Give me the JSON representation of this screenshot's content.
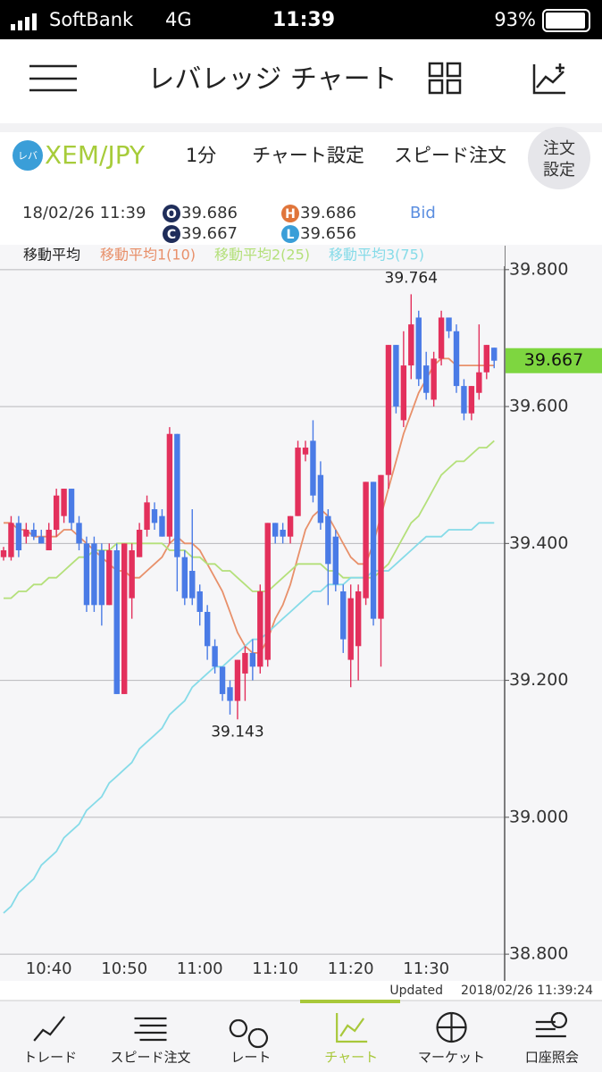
{
  "status_bar": {
    "carrier": "SoftBank",
    "network": "4G",
    "time": "11:39",
    "battery": "93%"
  },
  "header": {
    "title": "レバレッジ チャート"
  },
  "toolbar": {
    "logo": "レバ",
    "pair": "XEM/JPY",
    "interval": "1分",
    "chart_settings": "チャート設定",
    "speed_order": "スピード注文",
    "order_settings_1": "注文",
    "order_settings_2": "設定"
  },
  "quote": {
    "time": "18/02/26 11:39",
    "open": {
      "badge": "O",
      "value": "39.686"
    },
    "high": {
      "badge": "H",
      "value": "39.686"
    },
    "close": {
      "badge": "C",
      "value": "39.667"
    },
    "low": {
      "badge": "L",
      "value": "39.656"
    },
    "side": "Bid"
  },
  "chart_data": {
    "type": "candlestick",
    "legend_title": "移動平均",
    "x": [
      "10:34",
      "10:35",
      "10:36",
      "10:37",
      "10:38",
      "10:39",
      "10:40",
      "10:41",
      "10:42",
      "10:43",
      "10:44",
      "10:45",
      "10:46",
      "10:47",
      "10:48",
      "10:49",
      "10:50",
      "10:51",
      "10:52",
      "10:53",
      "10:54",
      "10:55",
      "10:56",
      "10:57",
      "10:58",
      "10:59",
      "11:00",
      "11:01",
      "11:02",
      "11:03",
      "11:04",
      "11:05",
      "11:06",
      "11:07",
      "11:08",
      "11:09",
      "11:10",
      "11:11",
      "11:12",
      "11:13",
      "11:14",
      "11:15",
      "11:16",
      "11:17",
      "11:18",
      "11:19",
      "11:20",
      "11:21",
      "11:22",
      "11:23",
      "11:24",
      "11:25",
      "11:26",
      "11:27",
      "11:28",
      "11:29",
      "11:30",
      "11:31",
      "11:32",
      "11:33",
      "11:34",
      "11:35",
      "11:36",
      "11:37",
      "11:38",
      "11:39"
    ],
    "open": [
      39.38,
      39.38,
      39.43,
      39.41,
      39.42,
      39.41,
      39.39,
      39.42,
      39.44,
      39.48,
      39.43,
      39.4,
      39.4,
      39.39,
      39.31,
      39.39,
      39.18,
      39.32,
      39.38,
      39.42,
      39.45,
      39.44,
      39.41,
      39.56,
      39.38,
      39.36,
      39.33,
      39.3,
      39.25,
      39.22,
      39.19,
      39.17,
      39.21,
      39.24,
      39.22,
      39.23,
      39.43,
      39.42,
      39.41,
      39.44,
      39.53,
      39.55,
      39.5,
      39.44,
      39.41,
      39.33,
      39.23,
      39.25,
      39.32,
      39.49,
      39.29,
      39.5,
      39.69,
      39.58,
      39.66,
      39.73,
      39.66,
      39.61,
      39.67,
      39.73,
      39.71,
      39.63,
      39.59,
      39.62,
      39.65,
      39.686
    ],
    "high": [
      39.395,
      39.44,
      39.44,
      39.43,
      39.43,
      39.42,
      39.43,
      39.48,
      39.48,
      39.48,
      39.44,
      39.41,
      39.41,
      39.4,
      39.4,
      39.4,
      39.4,
      39.4,
      39.43,
      39.47,
      39.46,
      39.45,
      39.57,
      39.56,
      39.39,
      39.45,
      39.34,
      39.31,
      39.26,
      39.22,
      39.2,
      39.23,
      39.25,
      39.26,
      39.34,
      39.43,
      39.43,
      39.43,
      39.44,
      39.55,
      39.55,
      39.58,
      39.52,
      39.45,
      39.42,
      39.34,
      39.34,
      39.34,
      39.49,
      39.49,
      39.5,
      39.69,
      39.69,
      39.71,
      39.764,
      39.74,
      39.68,
      39.68,
      39.74,
      39.73,
      39.72,
      39.64,
      39.63,
      39.72,
      39.69,
      39.686
    ],
    "low": [
      39.375,
      39.375,
      39.38,
      39.4,
      39.405,
      39.4,
      39.39,
      39.41,
      39.43,
      39.42,
      39.39,
      39.3,
      39.3,
      39.28,
      39.31,
      39.18,
      39.18,
      39.29,
      39.38,
      39.41,
      39.42,
      39.41,
      39.4,
      39.33,
      39.31,
      39.31,
      39.28,
      39.23,
      39.21,
      39.17,
      39.15,
      39.143,
      39.17,
      39.2,
      39.21,
      39.22,
      39.4,
      39.4,
      39.4,
      39.44,
      39.52,
      39.46,
      39.42,
      39.31,
      39.33,
      39.24,
      39.19,
      39.2,
      39.31,
      39.28,
      39.22,
      39.48,
      39.59,
      39.57,
      39.64,
      39.63,
      39.61,
      39.6,
      39.66,
      39.7,
      39.62,
      39.58,
      39.58,
      39.61,
      39.64,
      39.656
    ],
    "close": [
      39.39,
      39.43,
      39.39,
      39.42,
      39.41,
      39.4,
      39.42,
      39.47,
      39.48,
      39.43,
      39.4,
      39.31,
      39.31,
      39.31,
      39.39,
      39.18,
      39.4,
      39.39,
      39.42,
      39.46,
      39.43,
      39.41,
      39.56,
      39.38,
      39.32,
      39.32,
      39.3,
      39.25,
      39.22,
      39.18,
      39.17,
      39.23,
      39.24,
      39.22,
      39.33,
      39.43,
      39.41,
      39.41,
      39.44,
      39.54,
      39.54,
      39.47,
      39.43,
      39.37,
      39.34,
      39.26,
      39.32,
      39.33,
      39.49,
      39.29,
      39.5,
      39.69,
      39.6,
      39.66,
      39.72,
      39.64,
      39.62,
      39.67,
      39.73,
      39.71,
      39.63,
      39.59,
      39.63,
      39.65,
      39.69,
      39.667
    ],
    "up_color": "#e3305c",
    "down_color": "#4a7be6",
    "series": [
      {
        "name": "移動平均1(10)",
        "color": "#e8906a",
        "values": [
          39.43,
          39.43,
          39.42,
          39.42,
          39.41,
          39.41,
          39.41,
          39.41,
          39.42,
          39.42,
          39.41,
          39.4,
          39.39,
          39.38,
          39.37,
          39.36,
          39.36,
          39.35,
          39.35,
          39.36,
          39.37,
          39.38,
          39.4,
          39.41,
          39.4,
          39.4,
          39.39,
          39.37,
          39.35,
          39.33,
          39.3,
          39.27,
          39.25,
          39.24,
          39.24,
          39.26,
          39.29,
          39.31,
          39.34,
          39.38,
          39.42,
          39.44,
          39.45,
          39.44,
          39.42,
          39.4,
          39.38,
          39.37,
          39.37,
          39.4,
          39.44,
          39.48,
          39.52,
          39.56,
          39.59,
          39.62,
          39.64,
          39.66,
          39.67,
          39.67,
          39.66,
          39.66,
          39.66,
          39.66,
          39.66,
          39.66
        ]
      },
      {
        "name": "移動平均2(25)",
        "color": "#b4e07a",
        "values": [
          39.32,
          39.32,
          39.33,
          39.33,
          39.34,
          39.34,
          39.35,
          39.35,
          39.36,
          39.37,
          39.38,
          39.38,
          39.39,
          39.39,
          39.39,
          39.4,
          39.4,
          39.4,
          39.4,
          39.4,
          39.4,
          39.4,
          39.39,
          39.39,
          39.39,
          39.38,
          39.38,
          39.37,
          39.37,
          39.36,
          39.36,
          39.35,
          39.34,
          39.33,
          39.33,
          39.33,
          39.34,
          39.35,
          39.36,
          39.37,
          39.37,
          39.37,
          39.37,
          39.36,
          39.36,
          39.35,
          39.35,
          39.35,
          39.35,
          39.35,
          39.36,
          39.37,
          39.39,
          39.41,
          39.43,
          39.44,
          39.46,
          39.48,
          39.5,
          39.51,
          39.52,
          39.52,
          39.53,
          39.54,
          39.54,
          39.55
        ]
      },
      {
        "name": "移動平均3(75)",
        "color": "#86dbe8",
        "values": [
          38.86,
          38.87,
          38.89,
          38.9,
          38.91,
          38.93,
          38.94,
          38.95,
          38.97,
          38.98,
          38.99,
          39.01,
          39.02,
          39.03,
          39.05,
          39.06,
          39.07,
          39.08,
          39.1,
          39.11,
          39.12,
          39.13,
          39.15,
          39.16,
          39.17,
          39.19,
          39.2,
          39.21,
          39.22,
          39.22,
          39.23,
          39.24,
          39.25,
          39.26,
          39.26,
          39.27,
          39.28,
          39.29,
          39.3,
          39.31,
          39.32,
          39.33,
          39.33,
          39.34,
          39.34,
          39.34,
          39.35,
          39.35,
          39.35,
          39.36,
          39.36,
          39.36,
          39.37,
          39.38,
          39.39,
          39.4,
          39.41,
          39.41,
          39.41,
          39.42,
          39.42,
          39.42,
          39.42,
          39.43,
          39.43,
          39.43
        ]
      }
    ],
    "ylim": [
      38.761,
      39.835
    ],
    "yticks": [
      {
        "value": 39.8,
        "label": "39.800"
      },
      {
        "value": 39.6,
        "label": "39.600"
      },
      {
        "value": 39.4,
        "label": "39.400"
      },
      {
        "value": 39.2,
        "label": "39.200"
      },
      {
        "value": 39,
        "label": "39.000"
      },
      {
        "value": 38.8,
        "label": "38.800"
      }
    ],
    "xticks": [
      "10:40",
      "10:50",
      "11:00",
      "11:10",
      "11:20",
      "11:30"
    ],
    "grid": true,
    "last_price": 39.667,
    "last_price_color": "#7ed640",
    "high_annotation": 39.764,
    "low_annotation": 39.143,
    "updated_label": "Updated",
    "updated_time": "2018/02/26 11:39:24"
  },
  "tab_bar": {
    "tabs": [
      "トレード",
      "スピード注文",
      "レート",
      "チャート",
      "マーケット",
      "口座照会"
    ],
    "active": 3
  }
}
